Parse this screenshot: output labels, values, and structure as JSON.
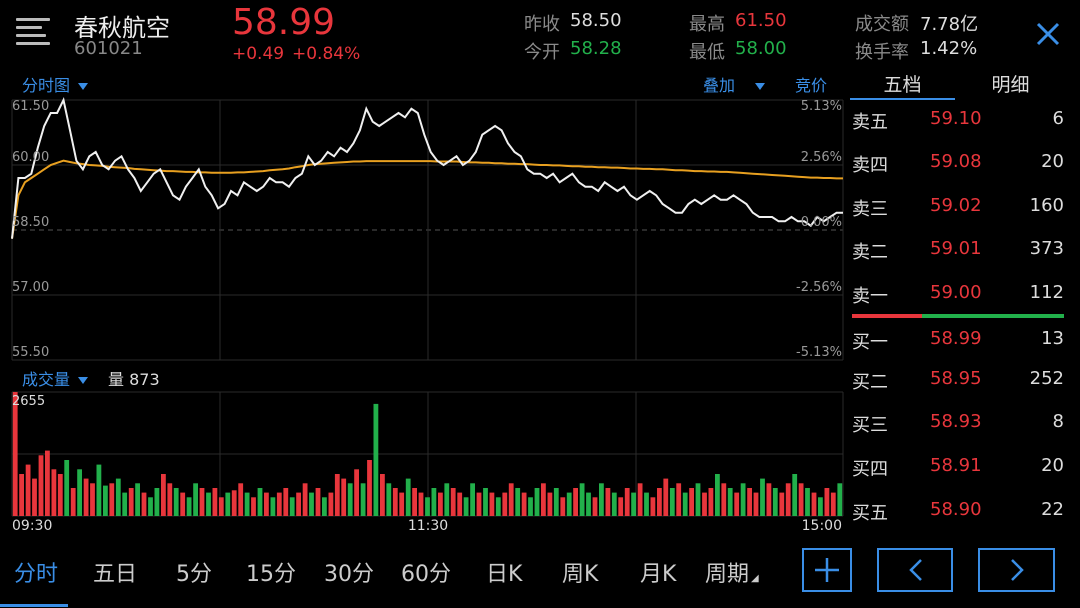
{
  "header": {
    "stock_name": "春秋航空",
    "stock_code": "601021",
    "price": "58.99",
    "change": "+0.49",
    "change_pct": "+0.84%",
    "stats": [
      {
        "label": "昨收",
        "value": "58.50",
        "tone": "gray"
      },
      {
        "label": "今开",
        "value": "58.28",
        "tone": "green"
      },
      {
        "label": "最高",
        "value": "61.50",
        "tone": "red"
      },
      {
        "label": "最低",
        "value": "58.00",
        "tone": "green"
      },
      {
        "label": "成交额",
        "value": "7.78亿",
        "tone": "white"
      },
      {
        "label": "换手率",
        "value": "1.42%",
        "tone": "white"
      }
    ]
  },
  "toolbar": {
    "chart_mode": "分时图",
    "overlay": "叠加",
    "auction": "竞价",
    "volume_label": "成交量",
    "volume_value": "量 873"
  },
  "chart_data": {
    "type": "line",
    "title": "",
    "prev_close": 58.5,
    "ylim": [
      55.5,
      61.5
    ],
    "y_ticks_left": [
      "61.50",
      "60.00",
      "58.50",
      "57.00",
      "55.50"
    ],
    "y_ticks_right": [
      "5.13%",
      "2.56%",
      "0.00%",
      "-2.56%",
      "-5.13%"
    ],
    "x_ticks": [
      "09:30",
      "11:30",
      "15:00"
    ],
    "series": [
      {
        "values": [
          58.3,
          59.7,
          59.7,
          59.8,
          60.4,
          60.9,
          61.2,
          61.2,
          61.5,
          60.8,
          60.1,
          59.9,
          60.2,
          60.3,
          60.0,
          59.9,
          60.1,
          60.2,
          59.9,
          59.7,
          59.4,
          59.6,
          59.8,
          59.9,
          59.6,
          59.3,
          59.2,
          59.5,
          59.7,
          59.9,
          59.5,
          59.3,
          59.0,
          59.1,
          59.4,
          59.3,
          59.6,
          59.5,
          59.4,
          59.5,
          59.7,
          59.6,
          59.6,
          59.5,
          59.7,
          59.8,
          60.2,
          60.0,
          60.1,
          60.3,
          60.2,
          60.4,
          60.3,
          60.5,
          60.8,
          61.3,
          61.0,
          60.9,
          61.0,
          61.1,
          61.2,
          61.1,
          61.3,
          61.2,
          60.7,
          60.3,
          60.1,
          60.0,
          60.1,
          60.2,
          60.0,
          60.1,
          60.3,
          60.7,
          60.8,
          60.9,
          60.8,
          60.5,
          60.3,
          60.2,
          59.9,
          59.8,
          59.8,
          59.7,
          59.8,
          59.6,
          59.7,
          59.8,
          59.6,
          59.5,
          59.5,
          59.4,
          59.6,
          59.5,
          59.4,
          59.5,
          59.3,
          59.2,
          59.3,
          59.4,
          59.3,
          59.1,
          59.0,
          58.9,
          58.9,
          59.1,
          59.2,
          59.1,
          59.2,
          59.3,
          59.2,
          59.2,
          59.3,
          59.2,
          59.1,
          58.9,
          58.8,
          58.8,
          58.8,
          58.7,
          58.7,
          58.8,
          58.7,
          58.7,
          58.6,
          58.8,
          58.7,
          58.8,
          58.9,
          58.9
        ]
      },
      {
        "values": [
          58.3,
          59.3,
          59.6,
          59.7,
          59.8,
          59.9,
          60.0,
          60.05,
          60.1,
          60.07,
          60.04,
          60.02,
          60.0,
          59.99,
          59.98,
          59.96,
          59.95,
          59.94,
          59.93,
          59.91,
          59.9,
          59.89,
          59.88,
          59.87,
          59.86,
          59.86,
          59.85,
          59.84,
          59.84,
          59.83,
          59.83,
          59.82,
          59.82,
          59.82,
          59.82,
          59.83,
          59.83,
          59.84,
          59.85,
          59.86,
          59.88,
          59.89,
          59.9,
          59.92,
          59.95,
          59.97,
          60.0,
          60.02,
          60.03,
          60.04,
          60.05,
          60.06,
          60.07,
          60.08,
          60.08,
          60.09,
          60.09,
          60.09,
          60.09,
          60.09,
          60.09,
          60.09,
          60.09,
          60.09,
          60.09,
          60.09,
          60.08,
          60.08,
          60.08,
          60.08,
          60.07,
          60.06,
          60.06,
          60.05,
          60.05,
          60.04,
          60.04,
          60.03,
          60.03,
          60.02,
          60.02,
          60.01,
          60.0,
          60.0,
          59.99,
          59.99,
          59.98,
          59.97,
          59.97,
          59.96,
          59.96,
          59.95,
          59.95,
          59.94,
          59.94,
          59.93,
          59.92,
          59.92,
          59.91,
          59.91,
          59.9,
          59.9,
          59.89,
          59.88,
          59.88,
          59.87,
          59.86,
          59.86,
          59.85,
          59.85,
          59.84,
          59.84,
          59.83,
          59.82,
          59.81,
          59.8,
          59.79,
          59.78,
          59.77,
          59.76,
          59.75,
          59.74,
          59.73,
          59.72,
          59.71,
          59.71,
          59.7,
          59.7,
          59.69,
          59.69
        ]
      }
    ],
    "volume": {
      "max_label": "2655",
      "max": 2655,
      "bars": [
        2655,
        900,
        1100,
        800,
        1300,
        1400,
        1000,
        900,
        1200,
        600,
        1000,
        800,
        700,
        1100,
        650,
        700,
        800,
        500,
        600,
        700,
        500,
        400,
        600,
        900,
        700,
        600,
        500,
        400,
        700,
        600,
        500,
        600,
        400,
        500,
        550,
        700,
        500,
        400,
        600,
        500,
        400,
        500,
        600,
        400,
        500,
        700,
        500,
        600,
        400,
        500,
        900,
        800,
        700,
        1000,
        700,
        1200,
        2400,
        900,
        700,
        600,
        500,
        800,
        600,
        500,
        400,
        600,
        500,
        700,
        600,
        500,
        400,
        700,
        500,
        600,
        500,
        400,
        500,
        700,
        600,
        500,
        400,
        600,
        700,
        500,
        600,
        400,
        500,
        600,
        700,
        500,
        400,
        700,
        600,
        500,
        400,
        600,
        500,
        700,
        500,
        400,
        600,
        800,
        600,
        700,
        500,
        600,
        700,
        500,
        600,
        900,
        700,
        600,
        500,
        700,
        600,
        500,
        800,
        700,
        600,
        500,
        700,
        900,
        700,
        600,
        500,
        400,
        600,
        500,
        700
      ],
      "up": [
        1,
        1,
        1,
        1,
        1,
        1,
        1,
        1,
        0,
        1,
        0,
        1,
        1,
        0,
        0,
        1,
        0,
        0,
        1,
        0,
        1,
        0,
        0,
        1,
        1,
        0,
        1,
        0,
        0,
        1,
        0,
        1,
        1,
        0,
        1,
        1,
        0,
        1,
        0,
        1,
        0,
        1,
        1,
        0,
        1,
        1,
        0,
        1,
        0,
        1,
        1,
        1,
        0,
        1,
        0,
        1,
        0,
        1,
        0,
        1,
        1,
        0,
        1,
        1,
        0,
        0,
        1,
        0,
        1,
        1,
        0,
        0,
        1,
        0,
        1,
        0,
        1,
        1,
        0,
        1,
        0,
        0,
        1,
        1,
        0,
        1,
        0,
        1,
        0,
        0,
        1,
        0,
        1,
        0,
        1,
        1,
        0,
        1,
        0,
        1,
        1,
        1,
        0,
        1,
        0,
        1,
        0,
        1,
        1,
        0,
        1,
        0,
        1,
        0,
        1,
        1,
        0,
        1,
        0,
        1,
        1,
        0,
        1,
        0,
        1,
        0,
        1,
        1,
        0,
        1
      ]
    }
  },
  "order_book": {
    "tabs": [
      "五档",
      "明细"
    ],
    "asks": [
      {
        "label": "卖五",
        "price": "59.10",
        "volume": "6"
      },
      {
        "label": "卖四",
        "price": "59.08",
        "volume": "20"
      },
      {
        "label": "卖三",
        "price": "59.02",
        "volume": "160"
      },
      {
        "label": "卖二",
        "price": "59.01",
        "volume": "373"
      },
      {
        "label": "卖一",
        "price": "59.00",
        "volume": "112"
      }
    ],
    "bids": [
      {
        "label": "买一",
        "price": "58.99",
        "volume": "13"
      },
      {
        "label": "买二",
        "price": "58.95",
        "volume": "252"
      },
      {
        "label": "买三",
        "price": "58.93",
        "volume": "8"
      },
      {
        "label": "买四",
        "price": "58.91",
        "volume": "20"
      },
      {
        "label": "买五",
        "price": "58.90",
        "volume": "22"
      }
    ],
    "ratio_sell": 0.33
  },
  "period_tabs": [
    "分时",
    "五日",
    "5分",
    "15分",
    "30分",
    "60分",
    "日K",
    "周K",
    "月K",
    "周期"
  ],
  "colors": {
    "up": "#e8363c",
    "down": "#22b04b",
    "accent": "#3a8ee6",
    "avg_line": "#e8a020"
  }
}
